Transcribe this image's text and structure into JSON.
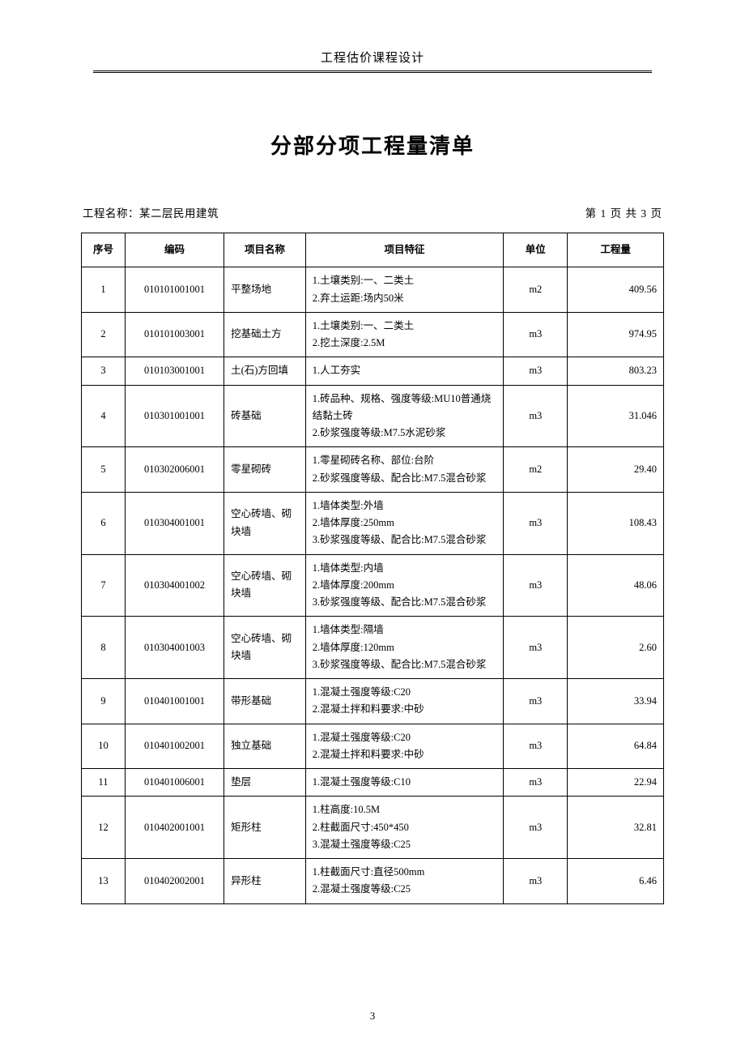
{
  "header": {
    "title": "工程估价课程设计"
  },
  "document": {
    "main_title": "分部分项工程量清单",
    "meta": {
      "project_label": "工程名称：",
      "project_name": "某二层民用建筑",
      "page_info": "第 1 页 共 3 页"
    }
  },
  "table": {
    "columns": {
      "seq": "序号",
      "code": "编码",
      "name": "项目名称",
      "feature": "项目特征",
      "unit": "单位",
      "qty": "工程量"
    },
    "rows": [
      {
        "seq": "1",
        "code": "010101001001",
        "name": "平整场地",
        "feature": "1.土壤类别:一、二类土\n2.弃土运距:场内50米",
        "unit": "m2",
        "qty": "409.56"
      },
      {
        "seq": "2",
        "code": "010101003001",
        "name": "挖基础土方",
        "feature": "1.土壤类别:一、二类土\n2.挖土深度:2.5M",
        "unit": "m3",
        "qty": "974.95"
      },
      {
        "seq": "3",
        "code": "010103001001",
        "name": "土(石)方回填",
        "feature": "1.人工夯实",
        "unit": "m3",
        "qty": "803.23"
      },
      {
        "seq": "4",
        "code": "010301001001",
        "name": "砖基础",
        "feature": "1.砖品种、规格、强度等级:MU10普通烧结黏土砖\n2.砂浆强度等级:M7.5水泥砂浆",
        "unit": "m3",
        "qty": "31.046"
      },
      {
        "seq": "5",
        "code": "010302006001",
        "name": "零星砌砖",
        "feature": "1.零星砌砖名称、部位:台阶\n2.砂浆强度等级、配合比:M7.5混合砂浆",
        "unit": "m2",
        "qty": "29.40"
      },
      {
        "seq": "6",
        "code": "010304001001",
        "name": "空心砖墙、砌块墙",
        "feature": "1.墙体类型:外墙\n2.墙体厚度:250mm\n3.砂浆强度等级、配合比:M7.5混合砂浆",
        "unit": "m3",
        "qty": "108.43"
      },
      {
        "seq": "7",
        "code": "010304001002",
        "name": "空心砖墙、砌块墙",
        "feature": "1.墙体类型:内墙\n2.墙体厚度:200mm\n3.砂浆强度等级、配合比:M7.5混合砂浆",
        "unit": "m3",
        "qty": "48.06"
      },
      {
        "seq": "8",
        "code": "010304001003",
        "name": "空心砖墙、砌块墙",
        "feature": "1.墙体类型:隔墙\n2.墙体厚度:120mm\n3.砂浆强度等级、配合比:M7.5混合砂浆",
        "unit": "m3",
        "qty": "2.60"
      },
      {
        "seq": "9",
        "code": "010401001001",
        "name": "带形基础",
        "feature": "1.混凝土强度等级:C20\n2.混凝土拌和料要求:中砂",
        "unit": "m3",
        "qty": "33.94"
      },
      {
        "seq": "10",
        "code": "010401002001",
        "name": "独立基础",
        "feature": "1.混凝土强度等级:C20\n2.混凝土拌和料要求:中砂",
        "unit": "m3",
        "qty": "64.84"
      },
      {
        "seq": "11",
        "code": "010401006001",
        "name": "垫层",
        "feature": "1.混凝土强度等级:C10",
        "unit": "m3",
        "qty": "22.94"
      },
      {
        "seq": "12",
        "code": "010402001001",
        "name": "矩形柱",
        "feature": "1.柱高度:10.5M\n2.柱截面尺寸:450*450\n3.混凝土强度等级:C25",
        "unit": "m3",
        "qty": "32.81"
      },
      {
        "seq": "13",
        "code": "010402002001",
        "name": "异形柱",
        "feature": "1.柱截面尺寸:直径500mm\n2.混凝土强度等级:C25",
        "unit": "m3",
        "qty": "6.46"
      }
    ]
  },
  "footer": {
    "page_number": "3"
  }
}
